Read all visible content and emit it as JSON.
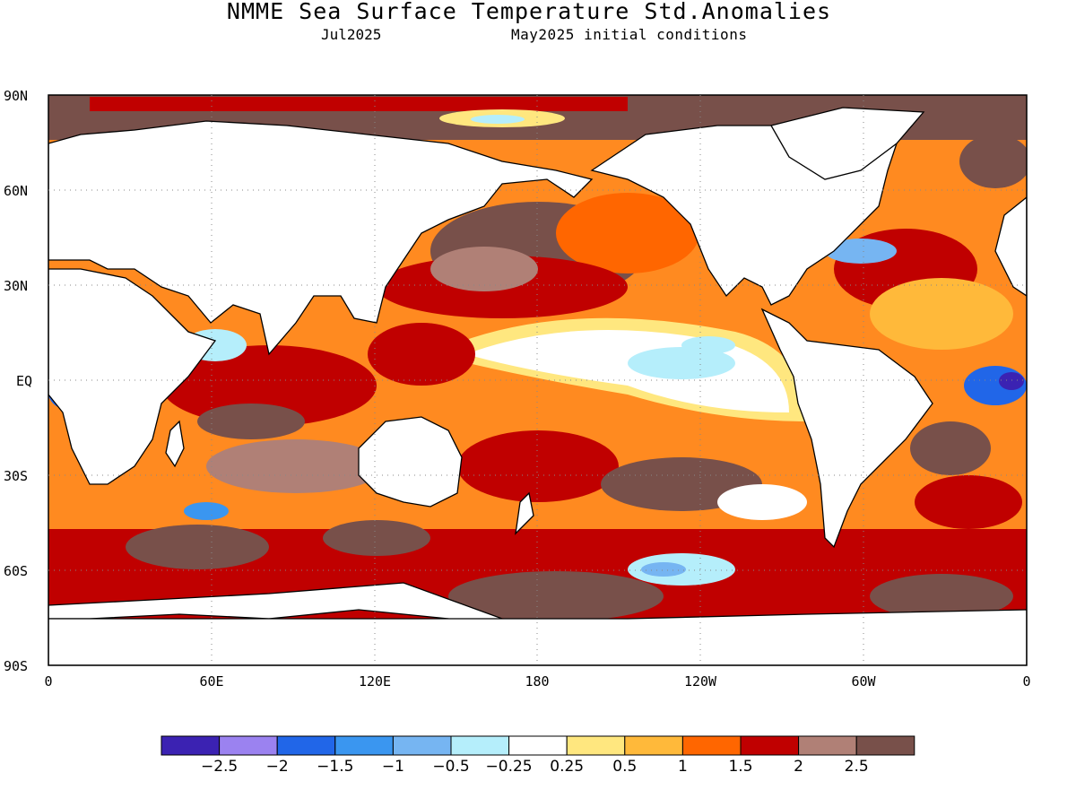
{
  "title": "NMME Sea Surface Temperature Std.Anomalies",
  "valid_month": "Jul2025",
  "init": "May2025 initial conditions",
  "lat_labels": [
    "90N",
    "60N",
    "30N",
    "EQ",
    "30S",
    "60S",
    "90S"
  ],
  "lon_labels": [
    "0",
    "60E",
    "120E",
    "180",
    "120W",
    "60W",
    "0"
  ],
  "colorbar": {
    "colors": [
      "#3b22b2",
      "#9b82f0",
      "#2166e8",
      "#3a96f0",
      "#76b5f2",
      "#b5eefb",
      "#ffffff",
      "#ffe77f",
      "#ffb93a",
      "#ff6600",
      "#c00000",
      "#b08076",
      "#78504a"
    ],
    "labels": [
      "-2.5",
      "-2",
      "-1.5",
      "-1",
      "-0.5",
      "-0.25",
      "0.25",
      "0.5",
      "1",
      "1.5",
      "2",
      "2.5"
    ]
  }
}
